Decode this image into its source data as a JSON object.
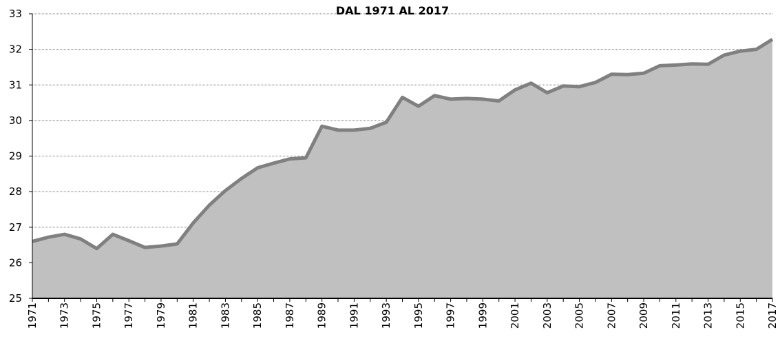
{
  "chart_data": {
    "type": "area",
    "title": "DAL 1971 AL 2017",
    "categories": [
      "1971",
      null,
      "1973",
      null,
      "1975",
      null,
      "1977",
      null,
      "1979",
      null,
      "1981",
      null,
      "1983",
      null,
      "1985",
      null,
      "1987",
      null,
      "1989",
      null,
      "1991",
      null,
      "1993",
      null,
      "1995",
      null,
      "1997",
      null,
      "1999",
      null,
      "2001",
      null,
      "2003",
      null,
      "2005",
      null,
      "2007",
      null,
      "2009",
      null,
      "2011",
      null,
      "2013",
      null,
      "2015",
      null,
      "2017"
    ],
    "values": [
      26.6,
      26.72,
      26.8,
      26.67,
      26.4,
      26.8,
      26.62,
      26.43,
      26.47,
      26.53,
      27.12,
      27.62,
      28.03,
      28.37,
      28.67,
      28.8,
      28.92,
      28.95,
      29.84,
      29.73,
      29.73,
      29.78,
      29.95,
      30.65,
      30.4,
      30.7,
      30.6,
      30.62,
      30.6,
      30.55,
      30.86,
      31.05,
      30.78,
      30.97,
      30.95,
      31.07,
      31.3,
      31.29,
      31.33,
      31.54,
      31.56,
      31.59,
      31.58,
      31.84,
      31.95,
      32.0,
      32.28
    ],
    "color": "#c0c0c0",
    "line_color": "#808080",
    "ylim": [
      25,
      33
    ],
    "yticks": [
      25,
      26,
      27,
      28,
      29,
      30,
      31,
      32,
      33
    ],
    "grid": true
  }
}
